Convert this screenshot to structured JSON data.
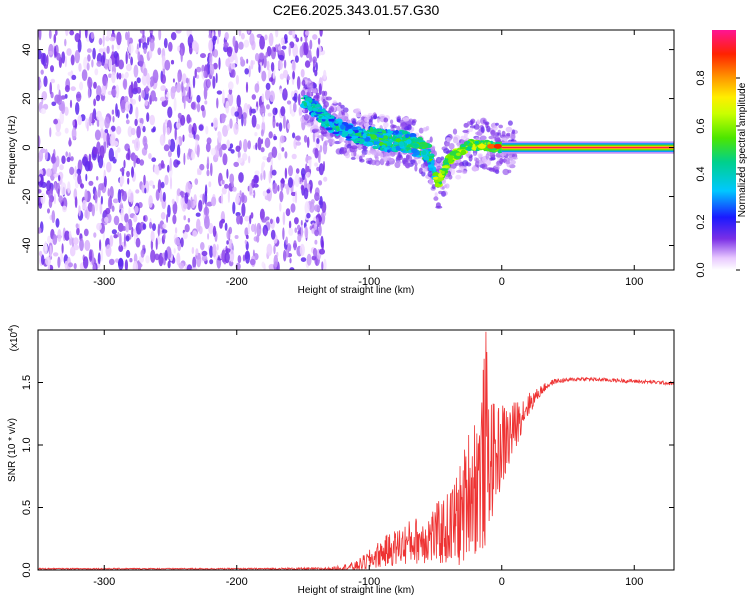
{
  "title": "C2E6.2025.343.01.57.G30",
  "chart_data": [
    {
      "type": "heatmap",
      "xlabel": "Height of straight line (km)",
      "ylabel": "Frequency (Hz)",
      "xlim": [
        -350,
        130
      ],
      "ylim": [
        -50,
        48
      ],
      "xticks": [
        "-300",
        "-200",
        "-100",
        "0",
        "100"
      ],
      "xtick_values": [
        -300,
        -200,
        -100,
        0,
        100
      ],
      "yticks": [
        "-40",
        "-20",
        "0",
        "20",
        "40"
      ],
      "ytick_values": [
        -40,
        -20,
        0,
        20,
        40
      ],
      "colorbar": {
        "label": "Normalized spectral amplitude",
        "ticks": [
          "0.0",
          "0.2",
          "0.4",
          "0.6",
          "0.8"
        ],
        "tick_values": [
          0.0,
          0.2,
          0.4,
          0.6,
          0.8
        ],
        "range": [
          0,
          1
        ]
      },
      "regions": [
        {
          "x": [
            -350,
            -133
          ],
          "freq": [
            -50,
            48
          ],
          "amplitude": 0.12,
          "pattern": "noise"
        },
        {
          "x": [
            -150,
            -100
          ],
          "freq": [
            -5,
            20
          ],
          "amplitude": 0.3
        },
        {
          "x": [
            -100,
            -50
          ],
          "freq": [
            -20,
            10
          ],
          "amplitude": 0.35
        },
        {
          "x": [
            -50,
            10
          ],
          "freq": [
            -5,
            5
          ],
          "amplitude": 0.6
        },
        {
          "x": [
            0,
            130
          ],
          "freq": [
            -1,
            1
          ],
          "amplitude": 0.95
        }
      ],
      "ridge": {
        "x": [
          -150,
          -130,
          -110,
          -90,
          -70,
          -55,
          -48,
          -40,
          -25,
          -15,
          -5,
          0,
          130
        ],
        "freq": [
          20,
          10,
          5,
          3,
          2,
          -2,
          -15,
          -5,
          1,
          1,
          0,
          0,
          0
        ]
      }
    },
    {
      "type": "line",
      "xlabel": "Height of straight line (km)",
      "ylabel": "SNR (10 * v/v)",
      "yscale_label": "(x10",
      "yscale_exp": "4",
      "xlim": [
        -350,
        130
      ],
      "ylim": [
        0,
        1.92
      ],
      "xticks": [
        "-300",
        "-200",
        "-100",
        "0",
        "100"
      ],
      "xtick_values": [
        -300,
        -200,
        -100,
        0,
        100
      ],
      "yticks": [
        "0.0",
        "0.5",
        "1.0",
        "1.5"
      ],
      "ytick_values": [
        0.0,
        0.5,
        1.0,
        1.5
      ],
      "series": [
        {
          "color": "#ee3333",
          "x": [
            -350,
            -300,
            -200,
            -130,
            -110,
            -100,
            -90,
            -80,
            -70,
            -60,
            -50,
            -40,
            -30,
            -25,
            -20,
            -15,
            -12,
            -10,
            -5,
            0,
            5,
            10,
            15,
            20,
            25,
            30,
            35,
            40,
            50,
            60,
            80,
            100,
            120,
            130
          ],
          "y": [
            0.01,
            0.01,
            0.01,
            0.01,
            0.03,
            0.08,
            0.14,
            0.18,
            0.22,
            0.25,
            0.28,
            0.33,
            0.45,
            0.65,
            0.7,
            0.8,
            1.05,
            0.9,
            0.9,
            1.0,
            1.05,
            1.15,
            1.25,
            1.32,
            1.38,
            1.44,
            1.48,
            1.51,
            1.52,
            1.53,
            1.52,
            1.51,
            1.5,
            1.49
          ],
          "spread": [
            0.005,
            0.005,
            0.005,
            0.01,
            0.04,
            0.08,
            0.12,
            0.15,
            0.18,
            0.2,
            0.25,
            0.3,
            0.45,
            0.5,
            0.6,
            0.7,
            0.9,
            0.6,
            0.4,
            0.35,
            0.3,
            0.2,
            0.15,
            0.1,
            0.06,
            0.04,
            0.03,
            0.02,
            0.015,
            0.015,
            0.015,
            0.015,
            0.015,
            0.015
          ]
        }
      ]
    }
  ]
}
